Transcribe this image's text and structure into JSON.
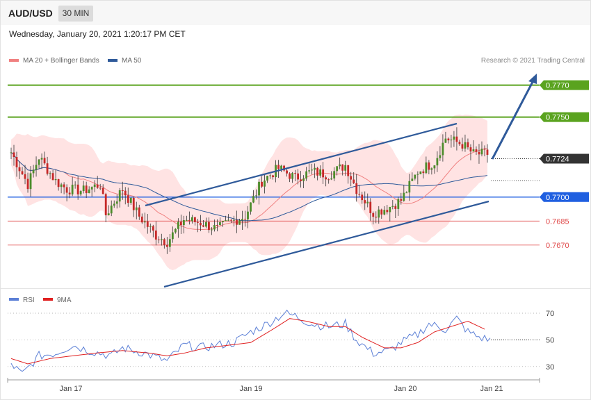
{
  "header": {
    "symbol": "AUD/USD",
    "timeframe": "30 MIN"
  },
  "timestamp": "Wednesday, January 20, 2021 1:20:17 PM CET",
  "legend": {
    "ma20": {
      "label": "MA 20 + Bollinger Bands",
      "color": "#f08080"
    },
    "ma50": {
      "label": "MA 50",
      "color": "#2f5a9a"
    }
  },
  "copyright": "Research © 2021 Trading Central",
  "rsi_legend": {
    "rsi": {
      "label": "RSI",
      "color": "#5b7fd6"
    },
    "ma9": {
      "label": "9MA",
      "color": "#e02020"
    }
  },
  "chart_data": [
    {
      "type": "candlestick",
      "ylim": [
        0.7643,
        0.7782
      ],
      "x_ticks": [
        "Jan 17",
        "Jan 19",
        "Jan 20",
        "Jan 21"
      ],
      "levels": [
        {
          "label": "0.7770",
          "value": 0.777,
          "color": "#5aa31f",
          "style": "resistance"
        },
        {
          "label": "0.7750",
          "value": 0.775,
          "color": "#5aa31f",
          "style": "resistance"
        },
        {
          "label": "0.7724",
          "value": 0.7724,
          "color": "#333333",
          "style": "current"
        },
        {
          "label": "0.7700",
          "value": 0.77,
          "color": "#1f5fe0",
          "style": "pivot"
        },
        {
          "label": "0.7685",
          "value": 0.7685,
          "color": "#e04a4a",
          "style": "support"
        },
        {
          "label": "0.7670",
          "value": 0.767,
          "color": "#e04a4a",
          "style": "support"
        }
      ],
      "colors": {
        "up": "#4c8c2b",
        "down": "#c62828",
        "band": "#ffd9d9",
        "channel": "#2f5a9a",
        "arrow": "#2f5a9a"
      },
      "anchors": [
        [
          0,
          0.7728
        ],
        [
          6,
          0.7708
        ],
        [
          10,
          0.7725
        ],
        [
          16,
          0.771
        ],
        [
          20,
          0.7705
        ],
        [
          26,
          0.7704
        ],
        [
          32,
          0.7708
        ],
        [
          34,
          0.7689
        ],
        [
          40,
          0.7705
        ],
        [
          46,
          0.7688
        ],
        [
          52,
          0.7676
        ],
        [
          56,
          0.7672
        ],
        [
          62,
          0.7686
        ],
        [
          68,
          0.7684
        ],
        [
          74,
          0.768
        ],
        [
          78,
          0.7684
        ],
        [
          84,
          0.7688
        ],
        [
          90,
          0.771
        ],
        [
          96,
          0.7718
        ],
        [
          102,
          0.7712
        ],
        [
          108,
          0.7716
        ],
        [
          114,
          0.7714
        ],
        [
          120,
          0.772
        ],
        [
          124,
          0.7705
        ],
        [
          130,
          0.769
        ],
        [
          136,
          0.7694
        ],
        [
          140,
          0.7698
        ],
        [
          146,
          0.7716
        ],
        [
          152,
          0.7722
        ],
        [
          156,
          0.7737
        ],
        [
          162,
          0.7733
        ],
        [
          166,
          0.7727
        ]
      ]
    },
    {
      "type": "line",
      "ylim": [
        20,
        82
      ],
      "y_ticks": [
        70,
        50,
        30
      ],
      "series": [
        {
          "name": "RSI",
          "color": "#5b7fd6",
          "anchors": [
            [
              0,
              32
            ],
            [
              4,
              24
            ],
            [
              10,
              38
            ],
            [
              16,
              40
            ],
            [
              22,
              46
            ],
            [
              28,
              42
            ],
            [
              36,
              38
            ],
            [
              40,
              44
            ],
            [
              48,
              40
            ],
            [
              56,
              34
            ],
            [
              62,
              46
            ],
            [
              68,
              44
            ],
            [
              74,
              46
            ],
            [
              80,
              48
            ],
            [
              86,
              56
            ],
            [
              92,
              62
            ],
            [
              98,
              70
            ],
            [
              102,
              68
            ],
            [
              108,
              62
            ],
            [
              114,
              60
            ],
            [
              120,
              62
            ],
            [
              124,
              50
            ],
            [
              130,
              40
            ],
            [
              136,
              42
            ],
            [
              140,
              48
            ],
            [
              146,
              54
            ],
            [
              150,
              62
            ],
            [
              156,
              58
            ],
            [
              160,
              66
            ],
            [
              164,
              56
            ],
            [
              168,
              52
            ],
            [
              172,
              50
            ]
          ]
        },
        {
          "name": "9MA",
          "color": "#e02020",
          "anchors": [
            [
              0,
              36
            ],
            [
              6,
              32
            ],
            [
              14,
              36
            ],
            [
              22,
              38
            ],
            [
              30,
              40
            ],
            [
              40,
              42
            ],
            [
              50,
              40
            ],
            [
              56,
              38
            ],
            [
              62,
              40
            ],
            [
              70,
              44
            ],
            [
              78,
              46
            ],
            [
              86,
              48
            ],
            [
              94,
              58
            ],
            [
              100,
              66
            ],
            [
              106,
              64
            ],
            [
              114,
              60
            ],
            [
              120,
              60
            ],
            [
              126,
              52
            ],
            [
              134,
              44
            ],
            [
              140,
              44
            ],
            [
              146,
              48
            ],
            [
              152,
              56
            ],
            [
              158,
              60
            ],
            [
              164,
              64
            ],
            [
              170,
              58
            ]
          ]
        }
      ]
    }
  ]
}
